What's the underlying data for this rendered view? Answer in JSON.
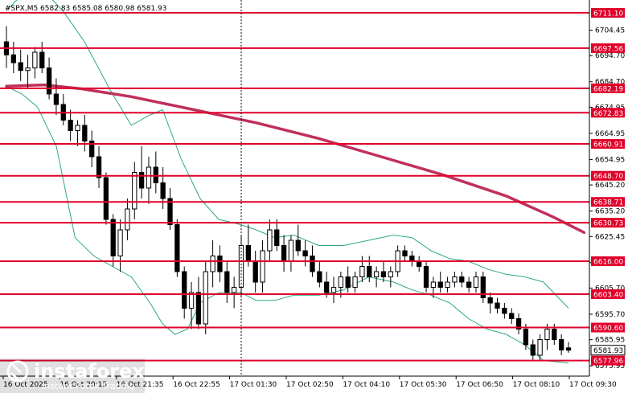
{
  "chart_data": {
    "type": "candlestick",
    "title": "#SPX,M5  6582.83 6585.08 6580.98 6581.93",
    "current_price": "6581.93",
    "y_axis": {
      "range": [
        6572,
        6716
      ],
      "ticks": [
        "6704.45",
        "6694.70",
        "6684.70",
        "6674.95",
        "6664.95",
        "6654.95",
        "6645.20",
        "6635.20",
        "6625.45",
        "6615.45",
        "6605.70",
        "6595.70",
        "6585.95",
        "6575.95"
      ]
    },
    "x_axis": {
      "labels": [
        "16 Oct 2025",
        "16 Oct 20:15",
        "16 Oct 21:35",
        "16 Oct 22:55",
        "17 Oct 01:30",
        "17 Oct 02:50",
        "17 Oct 04:10",
        "17 Oct 05:30",
        "17 Oct 06:50",
        "17 Oct 08:10",
        "17 Oct 09:30"
      ]
    },
    "levels": [
      "6711.10",
      "6697.56",
      "6682.19",
      "6672.83",
      "6660.91",
      "6648.70",
      "6638.71",
      "6630.73",
      "6616.00",
      "6603.40",
      "6590.60",
      "6577.96"
    ],
    "level_color": "#e0002a",
    "ma200": {
      "color": "#c0305a",
      "points": [
        [
          0,
          6683
        ],
        [
          12,
          6683.5
        ],
        [
          24,
          6682
        ],
        [
          40,
          6679
        ],
        [
          60,
          6674
        ],
        [
          80,
          6669
        ],
        [
          100,
          6663
        ],
        [
          120,
          6656
        ],
        [
          140,
          6649
        ],
        [
          160,
          6641
        ],
        [
          175,
          6633
        ],
        [
          185,
          6627
        ]
      ]
    },
    "bollinger": {
      "color": "#2aa880",
      "upper": [
        [
          0,
          6712
        ],
        [
          5,
          6718
        ],
        [
          10,
          6722
        ],
        [
          18,
          6712
        ],
        [
          25,
          6700
        ],
        [
          33,
          6682
        ],
        [
          40,
          6668
        ],
        [
          46,
          6672
        ],
        [
          50,
          6674
        ],
        [
          56,
          6655
        ],
        [
          62,
          6640
        ],
        [
          68,
          6632
        ],
        [
          75,
          6630
        ],
        [
          80,
          6628
        ],
        [
          86,
          6625
        ],
        [
          92,
          6626
        ],
        [
          100,
          6622
        ],
        [
          108,
          6622
        ],
        [
          116,
          6624
        ],
        [
          124,
          6626
        ],
        [
          130,
          6625
        ],
        [
          136,
          6620
        ],
        [
          142,
          6617
        ],
        [
          148,
          6616
        ],
        [
          154,
          6613
        ],
        [
          160,
          6611
        ],
        [
          166,
          6610
        ],
        [
          172,
          6608
        ],
        [
          180,
          6598
        ]
      ],
      "lower": [
        [
          0,
          6683
        ],
        [
          5,
          6680
        ],
        [
          10,
          6675
        ],
        [
          16,
          6660
        ],
        [
          22,
          6625
        ],
        [
          28,
          6618
        ],
        [
          34,
          6614
        ],
        [
          40,
          6610
        ],
        [
          46,
          6600
        ],
        [
          50,
          6592
        ],
        [
          54,
          6588
        ],
        [
          58,
          6590
        ],
        [
          62,
          6600
        ],
        [
          68,
          6604
        ],
        [
          75,
          6604
        ],
        [
          80,
          6601
        ],
        [
          86,
          6601
        ],
        [
          92,
          6603
        ],
        [
          100,
          6603
        ],
        [
          108,
          6605
        ],
        [
          116,
          6610
        ],
        [
          124,
          6608
        ],
        [
          130,
          6605
        ],
        [
          136,
          6603
        ],
        [
          142,
          6600
        ],
        [
          148,
          6594
        ],
        [
          154,
          6590
        ],
        [
          160,
          6588
        ],
        [
          166,
          6584
        ],
        [
          172,
          6578
        ],
        [
          180,
          6577
        ]
      ]
    },
    "candles": [
      [
        6700.0,
        6706.0,
        6690.0,
        6695.0
      ],
      [
        6695.0,
        6700.0,
        6688.0,
        6692.0
      ],
      [
        6692.0,
        6697.0,
        6685.0,
        6689.0
      ],
      [
        6689.0,
        6695.0,
        6682.0,
        6690.0
      ],
      [
        6690.0,
        6698.0,
        6686.0,
        6696.0
      ],
      [
        6696.0,
        6700.0,
        6688.0,
        6690.0
      ],
      [
        6690.0,
        6694.0,
        6678.0,
        6680.0
      ],
      [
        6680.0,
        6686.0,
        6672.0,
        6676.0
      ],
      [
        6676.0,
        6680.0,
        6668.0,
        6670.0
      ],
      [
        6670.0,
        6674.0,
        6662.0,
        6666.0
      ],
      [
        6666.0,
        6670.0,
        6660.0,
        6668.0
      ],
      [
        6668.0,
        6672.0,
        6658.0,
        6662.0
      ],
      [
        6662.0,
        6666.0,
        6652.0,
        6656.0
      ],
      [
        6656.0,
        6660.0,
        6644.0,
        6648.0
      ],
      [
        6648.0,
        6650.0,
        6630.0,
        6632.0
      ],
      [
        6632.0,
        6634.0,
        6614.0,
        6618.0
      ],
      [
        6618.0,
        6632.0,
        6612.0,
        6628.0
      ],
      [
        6628.0,
        6640.0,
        6624.0,
        6636.0
      ],
      [
        6636.0,
        6654.0,
        6632.0,
        6650.0
      ],
      [
        6650.0,
        6660.0,
        6640.0,
        6644.0
      ],
      [
        6644.0,
        6656.0,
        6638.0,
        6652.0
      ],
      [
        6652.0,
        6658.0,
        6642.0,
        6646.0
      ],
      [
        6646.0,
        6652.0,
        6636.0,
        6640.0
      ],
      [
        6640.0,
        6644.0,
        6628.0,
        6630.0
      ],
      [
        6630.0,
        6632.0,
        6610.0,
        6612.0
      ],
      [
        6612.0,
        6614.0,
        6594.0,
        6598.0
      ],
      [
        6598.0,
        6608.0,
        6590.0,
        6604.0
      ],
      [
        6604.0,
        6610.0,
        6590.0,
        6592.0
      ],
      [
        6592.0,
        6616.0,
        6588.0,
        6612.0
      ],
      [
        6612.0,
        6624.0,
        6606.0,
        6618.0
      ],
      [
        6618.0,
        6622.0,
        6608.0,
        6612.0
      ],
      [
        6612.0,
        6616.0,
        6600.0,
        6604.0
      ],
      [
        6604.0,
        6610.0,
        6598.0,
        6606.0
      ],
      [
        6606.0,
        6626.0,
        6602.0,
        6622.0
      ],
      [
        6622.0,
        6630.0,
        6614.0,
        6616.0
      ],
      [
        6616.0,
        6620.0,
        6604.0,
        6608.0
      ],
      [
        6608.0,
        6624.0,
        6604.0,
        6620.0
      ],
      [
        6620.0,
        6632.0,
        6616.0,
        6628.0
      ],
      [
        6628.0,
        6632.0,
        6620.0,
        6622.0
      ],
      [
        6622.0,
        6626.0,
        6612.0,
        6616.0
      ],
      [
        6616.0,
        6626.0,
        6612.0,
        6624.0
      ],
      [
        6624.0,
        6630.0,
        6618.0,
        6620.0
      ],
      [
        6620.0,
        6624.0,
        6614.0,
        6618.0
      ],
      [
        6618.0,
        6622.0,
        6610.0,
        6612.0
      ],
      [
        6612.0,
        6616.0,
        6606.0,
        6608.0
      ],
      [
        6608.0,
        6612.0,
        6602.0,
        6604.0
      ],
      [
        6604.0,
        6610.0,
        6600.0,
        6606.0
      ],
      [
        6606.0,
        6612.0,
        6602.0,
        6610.0
      ],
      [
        6610.0,
        6614.0,
        6604.0,
        6606.0
      ],
      [
        6606.0,
        6612.0,
        6604.0,
        6610.0
      ],
      [
        6610.0,
        6618.0,
        6608.0,
        6614.0
      ],
      [
        6614.0,
        6618.0,
        6608.0,
        6610.0
      ],
      [
        6610.0,
        6614.0,
        6606.0,
        6612.0
      ],
      [
        6612.0,
        6616.0,
        6608.0,
        6610.0
      ],
      [
        6610.0,
        6614.0,
        6606.0,
        6612.0
      ],
      [
        6612.0,
        6622.0,
        6610.0,
        6620.0
      ],
      [
        6620.0,
        6622.0,
        6616.0,
        6618.0
      ],
      [
        6618.0,
        6620.0,
        6614.0,
        6616.0
      ],
      [
        6616.0,
        6618.0,
        6612.0,
        6614.0
      ],
      [
        6614.0,
        6616.0,
        6604.0,
        6606.0
      ],
      [
        6606.0,
        6610.0,
        6602.0,
        6608.0
      ],
      [
        6608.0,
        6612.0,
        6604.0,
        6606.0
      ],
      [
        6606.0,
        6610.0,
        6604.0,
        6608.0
      ],
      [
        6608.0,
        6612.0,
        6606.0,
        6610.0
      ],
      [
        6610.0,
        6612.0,
        6606.0,
        6608.0
      ],
      [
        6608.0,
        6610.0,
        6604.0,
        6606.0
      ],
      [
        6606.0,
        6612.0,
        6604.0,
        6610.0
      ],
      [
        6610.0,
        6612.0,
        6600.0,
        6602.0
      ],
      [
        6602.0,
        6604.0,
        6596.0,
        6600.0
      ],
      [
        6600.0,
        6602.0,
        6596.0,
        6598.0
      ],
      [
        6598.0,
        6600.0,
        6594.0,
        6596.0
      ],
      [
        6596.0,
        6598.0,
        6592.0,
        6594.0
      ],
      [
        6594.0,
        6596.0,
        6588.0,
        6590.0
      ],
      [
        6590.0,
        6592.0,
        6582.0,
        6584.0
      ],
      [
        6584.0,
        6586.0,
        6578.0,
        6580.0
      ],
      [
        6580.0,
        6588.0,
        6578.0,
        6586.0
      ],
      [
        6586.0,
        6592.0,
        6582.0,
        6590.0
      ],
      [
        6590.0,
        6592.0,
        6584.0,
        6586.0
      ],
      [
        6586.0,
        6588.0,
        6580.0,
        6582.0
      ],
      [
        6582.83,
        6585.08,
        6580.98,
        6581.93
      ]
    ]
  },
  "logo": {
    "brand": "instaforex",
    "tagline": "Instant Forex Trading"
  }
}
